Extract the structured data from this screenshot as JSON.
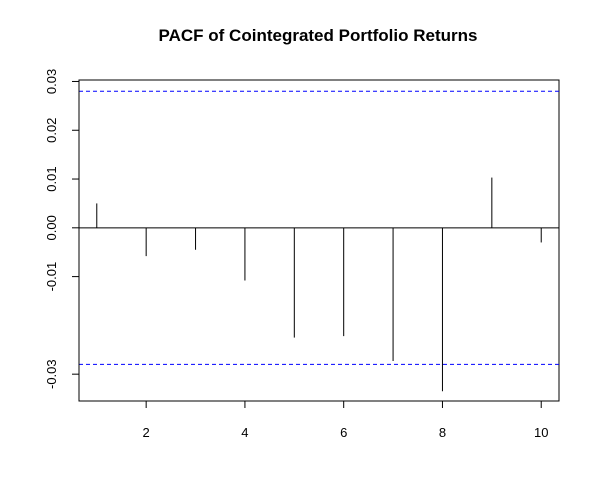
{
  "chart_data": {
    "type": "bar",
    "title": "PACF of Cointegrated Portfolio Returns",
    "xlabel": "",
    "ylabel": "",
    "x": [
      1,
      2,
      3,
      4,
      5,
      6,
      7,
      8,
      9,
      10
    ],
    "values": [
      0.005,
      -0.0058,
      -0.0045,
      -0.0108,
      -0.0225,
      -0.0222,
      -0.0273,
      -0.0335,
      0.0103,
      -0.003
    ],
    "xlim": [
      0.64,
      10.36
    ],
    "ylim": [
      -0.0355,
      0.0303
    ],
    "x_ticks": [
      2,
      4,
      6,
      8,
      10
    ],
    "x_tick_labels": [
      "2",
      "4",
      "6",
      "8",
      "10"
    ],
    "y_ticks": [
      0.03,
      0.02,
      0.01,
      0.0,
      -0.01,
      -0.03
    ],
    "y_tick_labels": [
      "0.03",
      "0.02",
      "0.01",
      "0.00",
      "-0.01",
      "-0.03"
    ],
    "confidence_bound": 0.028,
    "grid": false,
    "colors": {
      "bars": "#000000",
      "confidence_lines": "#0000ff",
      "zero_line": "#000000",
      "frame": "#000000"
    }
  }
}
